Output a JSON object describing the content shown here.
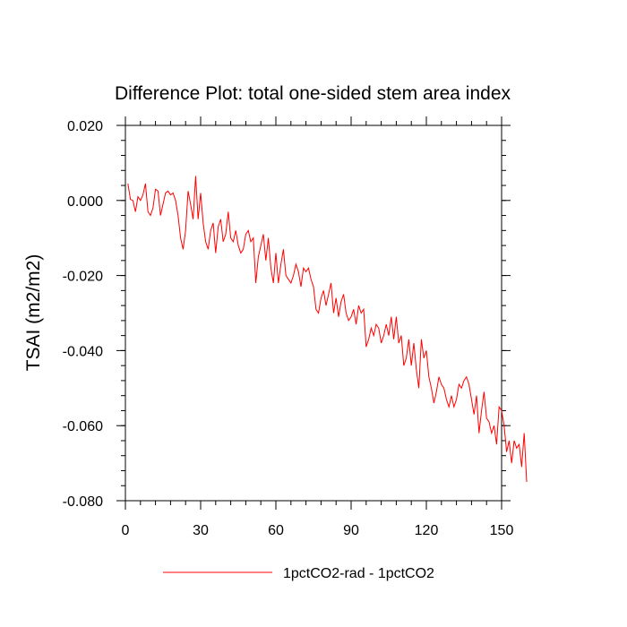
{
  "chart_data": {
    "type": "line",
    "title": "Difference Plot: total one-sided stem area index",
    "xlabel": "",
    "ylabel": "TSAI  (m2/m2)",
    "xlim": [
      0,
      150
    ],
    "ylim": [
      -0.08,
      0.02
    ],
    "x_ticks": [
      0,
      30,
      60,
      90,
      120,
      150
    ],
    "x_tick_labels": [
      "0",
      "30",
      "60",
      "90",
      "120",
      "150"
    ],
    "y_ticks": [
      0.02,
      0.0,
      -0.02,
      -0.04,
      -0.06,
      -0.08
    ],
    "y_tick_labels": [
      "0.020",
      "0.000",
      "-0.020",
      "-0.040",
      "-0.060",
      "-0.080"
    ],
    "grid": false,
    "legend_position": "bottom-center",
    "series": [
      {
        "name": "1pctCO2-rad - 1pctCO2",
        "color": "#ff0000",
        "x_start": 1,
        "x_step": 1,
        "values": [
          0.0045,
          0.0003,
          0.0,
          -0.003,
          0.001,
          0.0,
          0.0015,
          0.0045,
          -0.003,
          -0.004,
          -0.002,
          0.003,
          0.0025,
          -0.004,
          -0.001,
          0.002,
          0.0025,
          0.0015,
          0.002,
          0.0,
          -0.004,
          -0.01,
          -0.013,
          -0.008,
          0.0025,
          -0.001,
          -0.005,
          0.0065,
          -0.005,
          0.002,
          -0.006,
          -0.011,
          -0.013,
          -0.008,
          -0.006,
          -0.014,
          -0.007,
          -0.005,
          -0.011,
          -0.009,
          -0.003,
          -0.01,
          -0.011,
          -0.008,
          -0.012,
          -0.014,
          -0.013,
          -0.009,
          -0.008,
          -0.011,
          -0.01,
          -0.022,
          -0.015,
          -0.012,
          -0.009,
          -0.016,
          -0.01,
          -0.018,
          -0.022,
          -0.014,
          -0.022,
          -0.017,
          -0.013,
          -0.02,
          -0.021,
          -0.022,
          -0.02,
          -0.017,
          -0.019,
          -0.023,
          -0.018,
          -0.019,
          -0.018,
          -0.021,
          -0.023,
          -0.029,
          -0.03,
          -0.026,
          -0.024,
          -0.028,
          -0.025,
          -0.022,
          -0.03,
          -0.026,
          -0.031,
          -0.027,
          -0.025,
          -0.03,
          -0.032,
          -0.031,
          -0.029,
          -0.033,
          -0.028,
          -0.03,
          -0.029,
          -0.039,
          -0.037,
          -0.034,
          -0.036,
          -0.033,
          -0.034,
          -0.038,
          -0.036,
          -0.033,
          -0.036,
          -0.031,
          -0.037,
          -0.031,
          -0.038,
          -0.036,
          -0.044,
          -0.042,
          -0.037,
          -0.044,
          -0.038,
          -0.045,
          -0.05,
          -0.037,
          -0.042,
          -0.04,
          -0.047,
          -0.05,
          -0.054,
          -0.051,
          -0.047,
          -0.049,
          -0.05,
          -0.053,
          -0.055,
          -0.052,
          -0.055,
          -0.053,
          -0.049,
          -0.05,
          -0.048,
          -0.047,
          -0.049,
          -0.053,
          -0.057,
          -0.052,
          -0.062,
          -0.056,
          -0.051,
          -0.058,
          -0.059,
          -0.062,
          -0.06,
          -0.065,
          -0.055,
          -0.056,
          -0.06,
          -0.067,
          -0.064,
          -0.07,
          -0.064,
          -0.066,
          -0.065,
          -0.071,
          -0.062,
          -0.075
        ]
      }
    ]
  }
}
